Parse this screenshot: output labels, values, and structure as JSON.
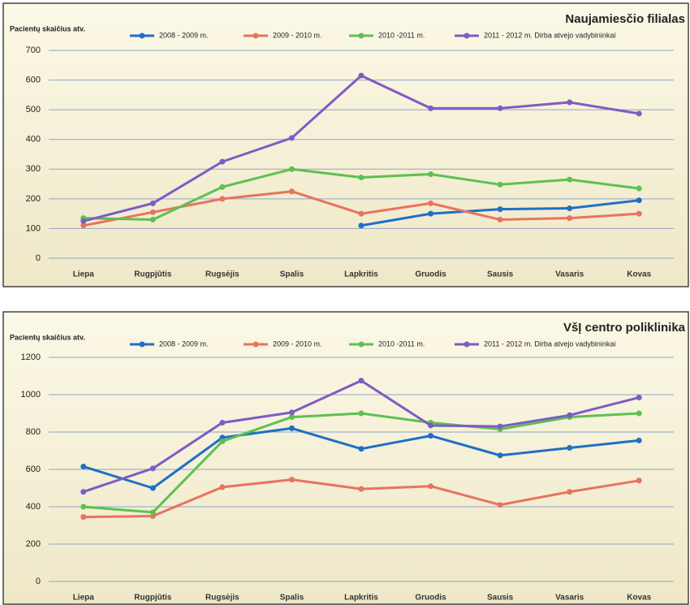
{
  "chart_data": [
    {
      "type": "line",
      "title": "Naujamiesčio filialas",
      "y_label": "Pacientų skaičius atv.",
      "categories": [
        "Liepa",
        "Rugpjūtis",
        "Rugsėjis",
        "Spalis",
        "Lapkritis",
        "Gruodis",
        "Sausis",
        "Vasaris",
        "Kovas"
      ],
      "ylim": [
        0,
        700
      ],
      "yticks": [
        0,
        100,
        200,
        300,
        400,
        500,
        600,
        700
      ],
      "grid": true,
      "series": [
        {
          "name": "2008 - 2009 m.",
          "color": "#1f6fc7",
          "values": [
            null,
            null,
            null,
            null,
            110,
            150,
            165,
            168,
            195
          ]
        },
        {
          "name": "2009 - 2010 m.",
          "color": "#e8735f",
          "values": [
            110,
            155,
            200,
            225,
            150,
            185,
            130,
            135,
            150
          ]
        },
        {
          "name": "2010 -2011 m.",
          "color": "#5cc151",
          "values": [
            135,
            130,
            240,
            300,
            272,
            283,
            248,
            265,
            235
          ]
        },
        {
          "name": "2011 - 2012 m. Dirba atvejo vadybininkai",
          "color": "#7d5cc4",
          "values": [
            125,
            185,
            325,
            405,
            615,
            505,
            505,
            525,
            487
          ]
        }
      ]
    },
    {
      "type": "line",
      "title": "VšĮ centro poliklinika",
      "y_label": "Pacientų skaičius atv.",
      "categories": [
        "Liepa",
        "Rugpjūtis",
        "Rugsėjis",
        "Spalis",
        "Lapkritis",
        "Gruodis",
        "Sausis",
        "Vasaris",
        "Kovas"
      ],
      "ylim": [
        0,
        1200
      ],
      "yticks": [
        0,
        200,
        400,
        600,
        800,
        1000,
        1200
      ],
      "grid": true,
      "series": [
        {
          "name": "2008 - 2009 m.",
          "color": "#1f6fc7",
          "values": [
            615,
            500,
            770,
            820,
            710,
            780,
            675,
            715,
            755
          ]
        },
        {
          "name": "2009 - 2010 m.",
          "color": "#e8735f",
          "values": [
            345,
            350,
            505,
            545,
            495,
            510,
            410,
            480,
            540
          ]
        },
        {
          "name": "2010 -2011 m.",
          "color": "#5cc151",
          "values": [
            400,
            370,
            750,
            880,
            900,
            850,
            815,
            880,
            900
          ]
        },
        {
          "name": "2011 - 2012 m. Dirba atvejo vadybininkai",
          "color": "#7d5cc4",
          "values": [
            480,
            605,
            850,
            905,
            1075,
            835,
            830,
            890,
            985
          ]
        }
      ]
    }
  ]
}
